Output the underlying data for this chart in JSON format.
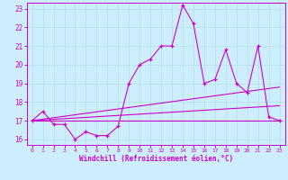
{
  "xlabel": "Windchill (Refroidissement éolien,°C)",
  "bg_color": "#cceeff",
  "line_color": "#cc00cc",
  "xlim": [
    -0.5,
    23.5
  ],
  "ylim": [
    15.7,
    23.3
  ],
  "yticks": [
    16,
    17,
    18,
    19,
    20,
    21,
    22,
    23
  ],
  "xticks": [
    0,
    1,
    2,
    3,
    4,
    5,
    6,
    7,
    8,
    9,
    10,
    11,
    12,
    13,
    14,
    15,
    16,
    17,
    18,
    19,
    20,
    21,
    22,
    23
  ],
  "series_main": {
    "x": [
      0,
      1,
      2,
      3,
      4,
      5,
      6,
      7,
      8,
      9,
      10,
      11,
      12,
      13,
      14,
      15,
      16,
      17,
      18,
      19,
      20,
      21,
      22,
      23
    ],
    "y": [
      17.0,
      17.5,
      16.8,
      16.8,
      16.0,
      16.4,
      16.2,
      16.2,
      16.7,
      19.0,
      20.0,
      20.3,
      21.0,
      21.0,
      23.2,
      22.2,
      19.0,
      19.2,
      20.8,
      19.0,
      18.5,
      21.0,
      17.2,
      17.0
    ]
  },
  "line_flat": {
    "x": [
      0,
      23
    ],
    "y": [
      17.0,
      17.0
    ]
  },
  "line_rise1": {
    "x": [
      0,
      23
    ],
    "y": [
      17.0,
      18.8
    ]
  },
  "line_rise2": {
    "x": [
      0,
      23
    ],
    "y": [
      17.0,
      17.8
    ]
  }
}
